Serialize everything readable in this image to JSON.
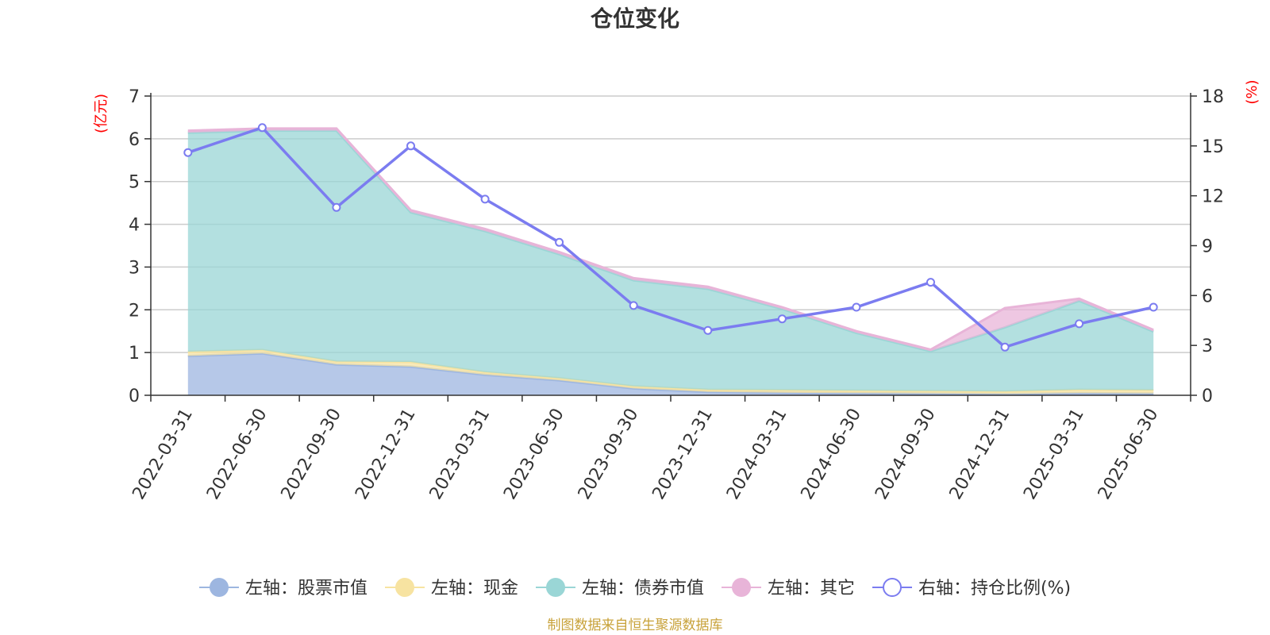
{
  "chart_data": {
    "type": "area",
    "title": "仓位变化",
    "left_axis": {
      "unit": "(亿元)",
      "min": 0,
      "max": 7,
      "ticks": [
        "0",
        "1",
        "2",
        "3",
        "4",
        "5",
        "6",
        "7"
      ]
    },
    "right_axis": {
      "unit": "(%)",
      "min": 0,
      "max": 18,
      "ticks": [
        "0",
        "3",
        "6",
        "9",
        "12",
        "15",
        "18"
      ]
    },
    "categories": [
      "2022-03-31",
      "2022-06-30",
      "2022-09-30",
      "2022-12-31",
      "2023-03-31",
      "2023-06-30",
      "2023-09-30",
      "2023-12-31",
      "2024-03-31",
      "2024-06-30",
      "2024-09-30",
      "2024-12-31",
      "2025-03-31",
      "2025-06-30"
    ],
    "stacked_series": [
      {
        "name": "左轴：股票市值",
        "color": "#9db6e0",
        "values": [
          0.92,
          0.98,
          0.72,
          0.67,
          0.48,
          0.35,
          0.16,
          0.08,
          0.06,
          0.05,
          0.04,
          0.03,
          0.05,
          0.04
        ]
      },
      {
        "name": "左轴：现金",
        "color": "#f7e3a1",
        "values": [
          0.1,
          0.08,
          0.07,
          0.11,
          0.06,
          0.05,
          0.05,
          0.05,
          0.06,
          0.06,
          0.06,
          0.06,
          0.08,
          0.08
        ]
      },
      {
        "name": "左轴：债券市值",
        "color": "#9ad6d6",
        "values": [
          5.12,
          5.13,
          5.4,
          3.5,
          3.3,
          2.9,
          2.48,
          2.36,
          1.9,
          1.35,
          0.93,
          1.5,
          2.08,
          1.37
        ]
      },
      {
        "name": "左轴：其它",
        "color": "#e8b4d8",
        "values": [
          0.05,
          0.05,
          0.05,
          0.05,
          0.05,
          0.05,
          0.05,
          0.05,
          0.04,
          0.04,
          0.04,
          0.45,
          0.05,
          0.04
        ]
      }
    ],
    "line_series": {
      "name": "右轴：持仓比例(%)",
      "color": "#7b7cf0",
      "values": [
        14.6,
        16.1,
        11.3,
        15.0,
        11.8,
        9.2,
        5.4,
        3.9,
        4.6,
        5.3,
        6.8,
        2.9,
        4.3,
        5.3
      ]
    },
    "grid": true,
    "legend_position": "bottom"
  },
  "footer": "制图数据来自恒生聚源数据库"
}
